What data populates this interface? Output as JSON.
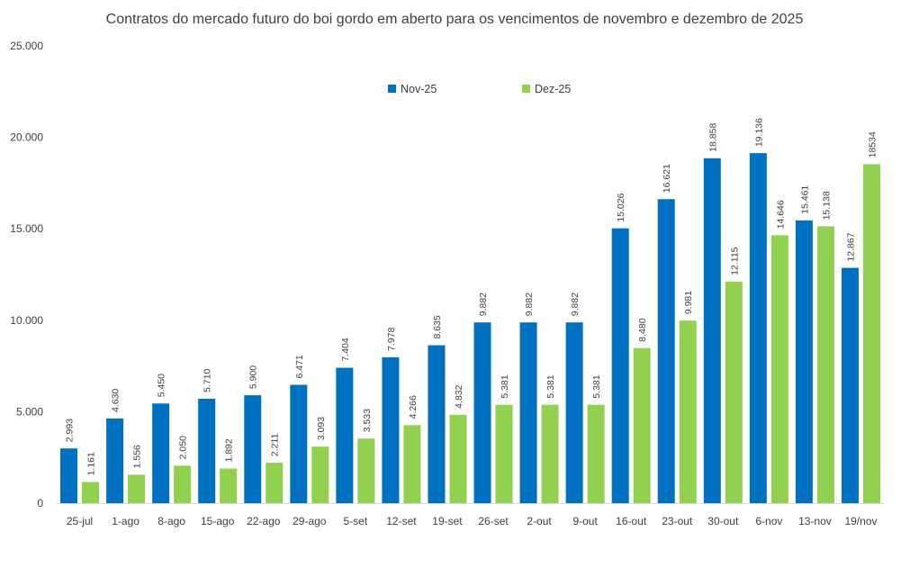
{
  "chart_data": {
    "type": "bar",
    "title": "Contratos do mercado futuro do boi gordo em aberto para os vencimentos de novembro e dezembro de 2025",
    "xlabel": "",
    "ylabel": "",
    "ylim": [
      0,
      25000
    ],
    "yticks": [
      0,
      5000,
      10000,
      15000,
      20000,
      25000
    ],
    "ytick_labels": [
      "0",
      "5.000",
      "10.000",
      "15.000",
      "20.000",
      "25.000"
    ],
    "grid": false,
    "legend_position": "top-center",
    "categories": [
      "25-jul",
      "1-ago",
      "8-ago",
      "15-ago",
      "22-ago",
      "29-ago",
      "5-set",
      "12-set",
      "19-set",
      "26-set",
      "2-out",
      "9-out",
      "16-out",
      "23-out",
      "30-out",
      "6-nov",
      "13-nov",
      "19/nov"
    ],
    "series": [
      {
        "name": "Nov-25",
        "color": "#0070c0",
        "values": [
          2993,
          4630,
          5450,
          5710,
          5900,
          6471,
          7404,
          7978,
          8635,
          9882,
          9882,
          9882,
          15026,
          16621,
          18858,
          19136,
          15461,
          12867
        ],
        "labels": [
          "2.993",
          "4.630",
          "5.450",
          "5.710",
          "5.900",
          "6.471",
          "7.404",
          "7.978",
          "8.635",
          "9.882",
          "9.882",
          "9.882",
          "15.026",
          "16.621",
          "18.858",
          "19.136",
          "15.461",
          "12.867"
        ]
      },
      {
        "name": "Dez-25",
        "color": "#92d050",
        "values": [
          1161,
          1556,
          2050,
          1892,
          2211,
          3093,
          3533,
          4266,
          4832,
          5381,
          5381,
          5381,
          8480,
          9981,
          12115,
          14646,
          15138,
          18534
        ],
        "labels": [
          "1.161",
          "1.556",
          "2.050",
          "1.892",
          "2.211",
          "3.093",
          "3.533",
          "4.266",
          "4.832",
          "5.381",
          "5.381",
          "5.381",
          "8.480",
          "9.981",
          "12.115",
          "14.646",
          "15.138",
          "18534"
        ]
      }
    ]
  }
}
